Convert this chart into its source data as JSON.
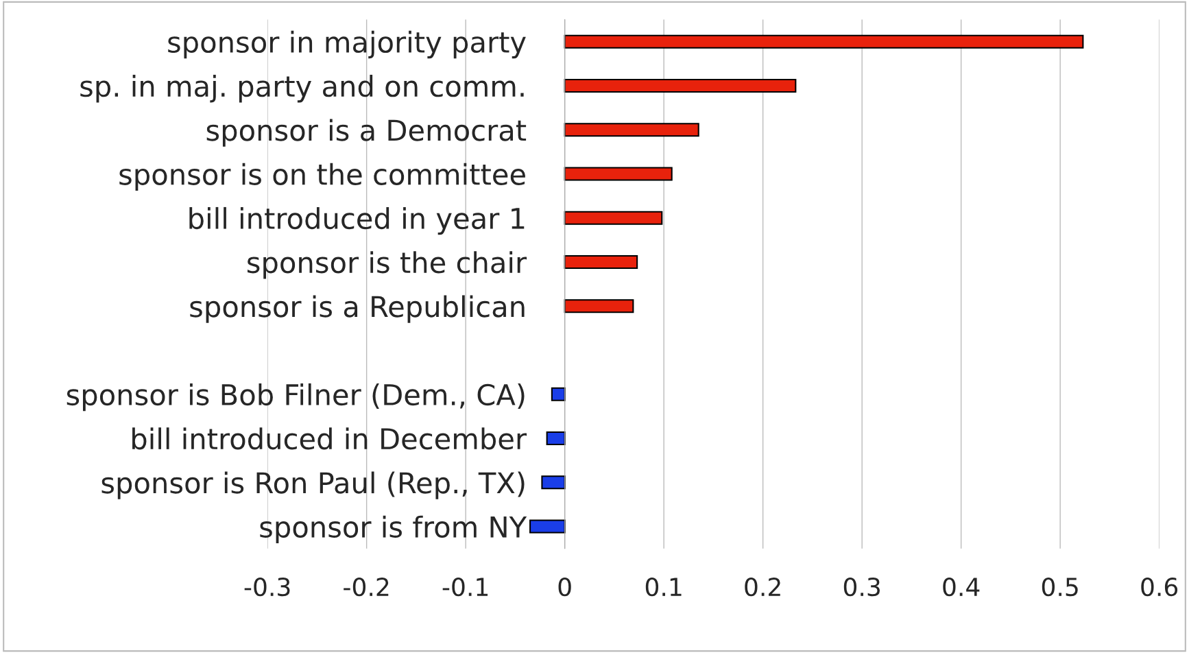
{
  "chart_data": {
    "type": "bar",
    "orientation": "horizontal",
    "categories": [
      "sponsor in majority party",
      "sp. in maj. party and on comm.",
      "sponsor is a Democrat",
      "sponsor is on the committee",
      "bill introduced in year 1",
      "sponsor is the chair",
      "sponsor is a Republican",
      null,
      "sponsor is Bob Filner (Dem., CA)",
      "bill introduced in December",
      "sponsor is Ron Paul (Rep., TX)",
      "sponsor is from NY"
    ],
    "values": [
      0.523,
      0.233,
      0.135,
      0.108,
      0.098,
      0.073,
      0.069,
      null,
      -0.013,
      -0.018,
      -0.023,
      -0.035
    ],
    "colors": [
      "#e8220c",
      "#e8220c",
      "#e8220c",
      "#e8220c",
      "#e8220c",
      "#e8220c",
      "#e8220c",
      "#e8220c",
      "#1a3ee8",
      "#1a3ee8",
      "#1a3ee8",
      "#1a3ee8"
    ],
    "xlim": [
      -0.3,
      0.6
    ],
    "xticks": [
      -0.3,
      -0.2,
      -0.1,
      0,
      0.1,
      0.2,
      0.3,
      0.4,
      0.5,
      0.6
    ],
    "grid": "x",
    "legend": false
  }
}
